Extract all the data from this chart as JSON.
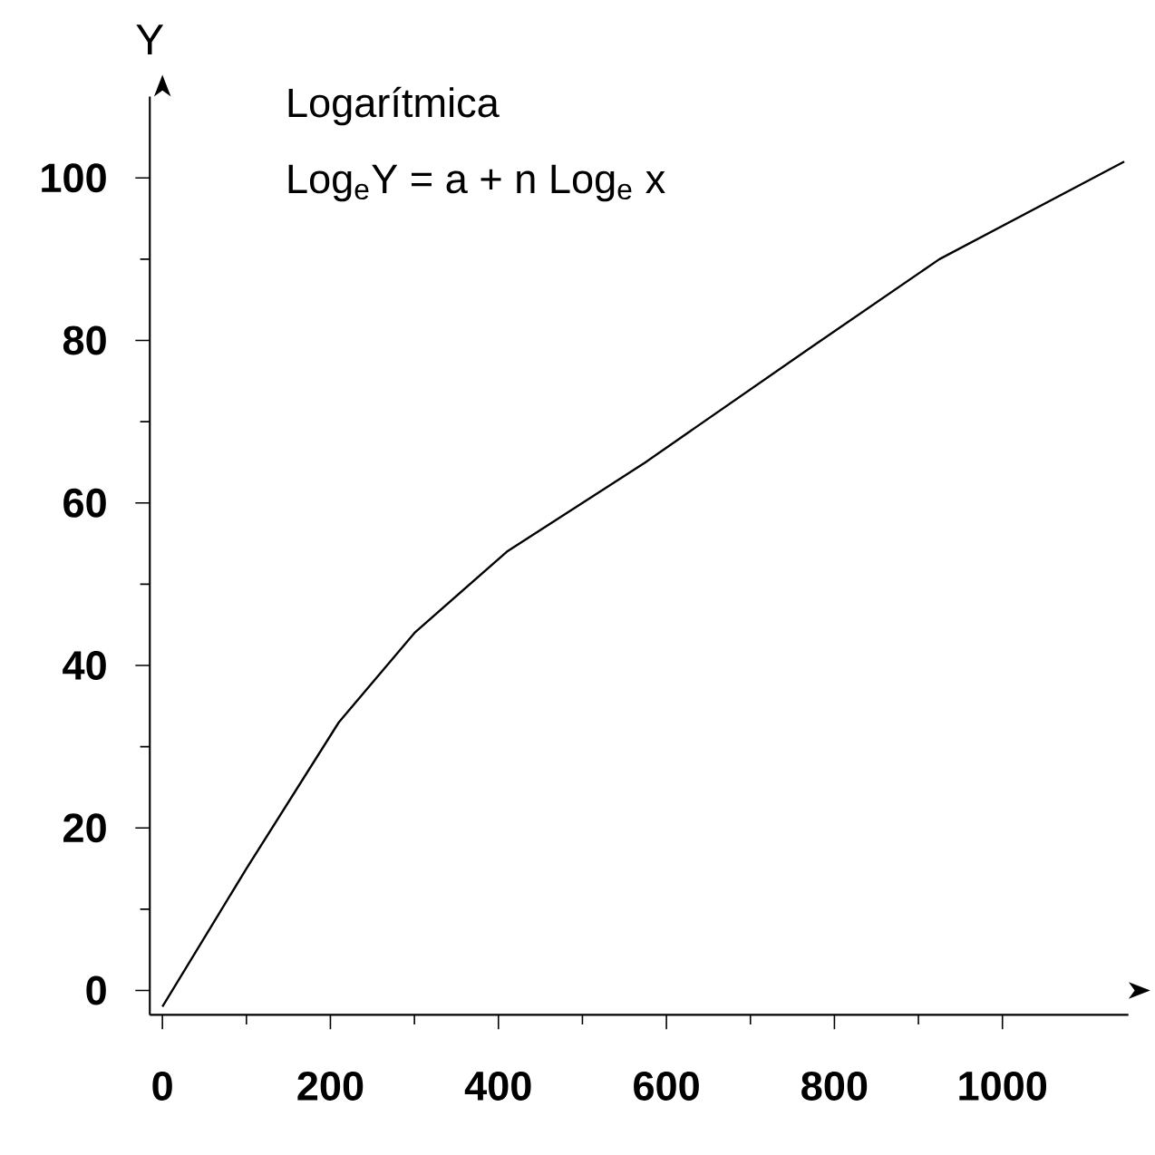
{
  "chart_data": {
    "type": "line",
    "ylabel": "Y",
    "annotations": [
      "Logarítmica",
      "Log$_{e}$Y = a + n Log$_{e}$ x"
    ],
    "x": [
      0,
      100,
      210,
      300,
      410,
      575,
      770,
      925,
      1145
    ],
    "series": [
      {
        "color": "#000000",
        "values": [
          -2,
          15,
          33,
          44,
          54,
          65,
          79,
          90,
          102
        ]
      }
    ],
    "xlim": [
      -15,
      1150
    ],
    "ylim": [
      -3,
      110
    ],
    "xticks": [
      0,
      200,
      400,
      600,
      800,
      1000
    ],
    "yticks": [
      0,
      20,
      40,
      60,
      80,
      100
    ],
    "line_style": "solid"
  }
}
